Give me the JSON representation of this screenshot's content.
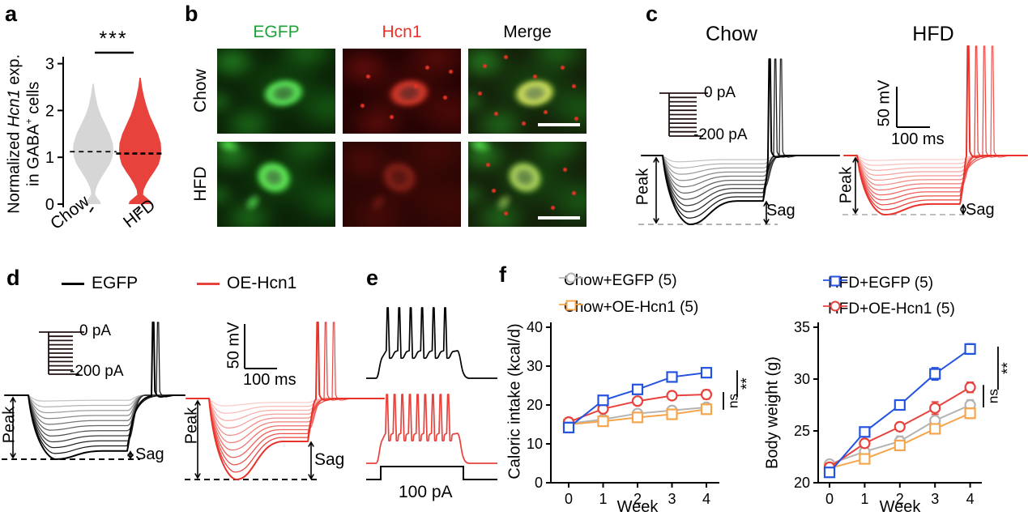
{
  "colors": {
    "red": "#e8423c",
    "red_dark": "#e8322a",
    "pink": "#fbdbd8",
    "gray_light": "#d8d8d8",
    "black": "#000000",
    "gray_violin": "#d6d6d6",
    "blue": "#2453e0",
    "orange": "#f5a54b",
    "gray_series": "#b3b3b3",
    "green_label": "#1ca338"
  },
  "panels": {
    "a": {
      "label": "a",
      "ylabel_pre": "Normalized ",
      "ylabel_gene": "Hcn1",
      "ylabel_post": " exp.",
      "ylabel2_pre": "in GABA",
      "ylabel2_sup": "+",
      "ylabel2_post": " cells",
      "significance": "***"
    },
    "b": {
      "label": "b",
      "columns": [
        {
          "label": "EGFP",
          "color": "#1ca338"
        },
        {
          "label": "Hcn1",
          "color": "#e8322a"
        },
        {
          "label": "Merge",
          "color": "#000000"
        }
      ],
      "rows": [
        "Chow",
        "HFD"
      ]
    },
    "c": {
      "label": "c",
      "left": {
        "title": "Chow",
        "inset_top": "0 pA",
        "inset_bottom": "-200 pA",
        "peak": "Peak",
        "sag": "Sag",
        "n_traces": 11
      },
      "right": {
        "title": "HFD",
        "scale_v": "50 mV",
        "scale_h": "100 ms",
        "peak": "Peak",
        "sag": "Sag",
        "n_traces": 12
      }
    },
    "d": {
      "label": "d",
      "legend": [
        {
          "label": "EGFP",
          "color": "#000000"
        },
        {
          "label": "OE-Hcn1",
          "color": "#e8423c"
        }
      ],
      "left": {
        "inset_top": "0 pA",
        "inset_bottom": "-200 pA",
        "peak": "Peak",
        "sag": "Sag",
        "n_traces": 11
      },
      "right": {
        "scale_v": "50 mV",
        "scale_h": "100 ms",
        "peak": "Peak",
        "sag": "Sag",
        "n_traces": 11
      }
    },
    "e": {
      "label": "e",
      "pulse_label": "100 pA",
      "traces": [
        {
          "color": "#000000",
          "n_spikes": 6
        },
        {
          "color": "#e8423c",
          "n_spikes": 9
        }
      ]
    },
    "f": {
      "label": "f",
      "legend_left": [
        {
          "label": "Chow+EGFP (5)",
          "color": "#b3b3b3",
          "marker": "circle"
        },
        {
          "label": "Chow+OE-Hcn1 (5)",
          "color": "#f5a54b",
          "marker": "square"
        }
      ],
      "legend_right": [
        {
          "label": "HFD+EGFP (5)",
          "color": "#2453e0",
          "marker": "square"
        },
        {
          "label": "HFD+OE-Hcn1 (5)",
          "color": "#e8423c",
          "marker": "circle"
        }
      ]
    }
  },
  "chart_data": [
    {
      "id": "violin_hcn1",
      "type": "violin",
      "ylabel": "Normalized Hcn1 exp. in GABA+ cells",
      "ylim": [
        0,
        3.4
      ],
      "yticks": [
        0,
        1,
        2,
        3
      ],
      "categories": [
        "Chow",
        "HFD"
      ],
      "significance": "***",
      "series": [
        {
          "name": "Chow",
          "color": "#d6d6d6",
          "median": 1.12,
          "max": 2.57,
          "profile": [
            [
              2.57,
              0.03
            ],
            [
              2.35,
              0.1
            ],
            [
              2.1,
              0.22
            ],
            [
              1.9,
              0.38
            ],
            [
              1.7,
              0.6
            ],
            [
              1.5,
              0.82
            ],
            [
              1.3,
              0.97
            ],
            [
              1.15,
              1.0
            ],
            [
              1.0,
              0.95
            ],
            [
              0.85,
              0.82
            ],
            [
              0.7,
              0.6
            ],
            [
              0.55,
              0.38
            ],
            [
              0.42,
              0.22
            ],
            [
              0.3,
              0.12
            ],
            [
              0.2,
              0.1
            ],
            [
              0.12,
              0.22
            ],
            [
              0.06,
              0.34
            ],
            [
              0.0,
              0.38
            ]
          ]
        },
        {
          "name": "HFD",
          "color": "#e8423c",
          "median": 1.08,
          "max": 2.7,
          "profile": [
            [
              2.7,
              0.03
            ],
            [
              2.5,
              0.09
            ],
            [
              2.3,
              0.18
            ],
            [
              2.1,
              0.3
            ],
            [
              1.9,
              0.45
            ],
            [
              1.7,
              0.65
            ],
            [
              1.5,
              0.85
            ],
            [
              1.3,
              0.98
            ],
            [
              1.15,
              1.0
            ],
            [
              1.0,
              0.97
            ],
            [
              0.85,
              0.88
            ],
            [
              0.7,
              0.68
            ],
            [
              0.55,
              0.45
            ],
            [
              0.42,
              0.28
            ],
            [
              0.3,
              0.16
            ],
            [
              0.2,
              0.14
            ],
            [
              0.12,
              0.35
            ],
            [
              0.06,
              0.5
            ],
            [
              0.0,
              0.55
            ]
          ]
        }
      ]
    },
    {
      "id": "caloric_intake",
      "type": "line",
      "ylabel": "Caloric intake (kcal/d)",
      "xlabel": "Week",
      "x": [
        0,
        1,
        2,
        3,
        4
      ],
      "ylim": [
        0,
        40
      ],
      "yticks": [
        0,
        10,
        20,
        30,
        40
      ],
      "series": [
        {
          "name": "Chow+EGFP (5)",
          "color": "#b3b3b3",
          "marker": "circle",
          "values": [
            15.2,
            16.3,
            17.8,
            18.6,
            19.4
          ],
          "err": [
            0.6,
            0.5,
            0.9,
            0.6,
            0.7
          ]
        },
        {
          "name": "Chow+OE-Hcn1 (5)",
          "color": "#f5a54b",
          "marker": "square",
          "values": [
            15.0,
            15.8,
            16.8,
            17.6,
            18.9
          ],
          "err": [
            0.5,
            0.5,
            0.8,
            0.7,
            0.8
          ]
        },
        {
          "name": "HFD+OE-Hcn1 (5)",
          "color": "#e8423c",
          "marker": "circle",
          "values": [
            15.6,
            19.0,
            21.0,
            22.4,
            22.7
          ],
          "err": [
            1.1,
            0.8,
            0.7,
            0.6,
            1.2
          ]
        },
        {
          "name": "HFD+EGFP (5)",
          "color": "#2453e0",
          "marker": "square",
          "values": [
            14.2,
            21.2,
            24.0,
            27.2,
            28.3
          ],
          "err": [
            1.3,
            0.9,
            0.7,
            1.2,
            0.9
          ]
        }
      ],
      "significance": [
        {
          "label": "ns",
          "from": 19.4,
          "to": 22.7
        },
        {
          "label": "**",
          "from": 22.7,
          "to": 28.3
        }
      ]
    },
    {
      "id": "body_weight",
      "type": "line",
      "ylabel": "Body weight (g)",
      "xlabel": "Week",
      "x": [
        0,
        1,
        2,
        3,
        4
      ],
      "ylim": [
        20,
        35
      ],
      "yticks": [
        20,
        25,
        30,
        35
      ],
      "series": [
        {
          "name": "Chow+EGFP (5)",
          "color": "#b3b3b3",
          "marker": "circle",
          "values": [
            21.8,
            23.0,
            24.0,
            26.0,
            27.5
          ],
          "err": [
            0.4,
            0.4,
            0.5,
            0.4,
            0.5
          ]
        },
        {
          "name": "Chow+OE-Hcn1 (5)",
          "color": "#f5a54b",
          "marker": "square",
          "values": [
            21.4,
            22.3,
            23.6,
            25.2,
            26.7
          ],
          "err": [
            0.3,
            0.4,
            0.4,
            0.4,
            0.5
          ]
        },
        {
          "name": "HFD+OE-Hcn1 (5)",
          "color": "#e8423c",
          "marker": "circle",
          "values": [
            21.5,
            23.8,
            25.4,
            27.2,
            29.2
          ],
          "err": [
            0.3,
            0.4,
            0.4,
            0.6,
            0.5
          ]
        },
        {
          "name": "HFD+EGFP (5)",
          "color": "#2453e0",
          "marker": "square",
          "values": [
            21.0,
            24.9,
            27.5,
            30.5,
            32.9
          ],
          "err": [
            0.4,
            0.3,
            0.4,
            0.6,
            0.5
          ]
        }
      ],
      "significance": [
        {
          "label": "ns",
          "from": 27.5,
          "to": 29.2
        },
        {
          "label": "**",
          "from": 29.2,
          "to": 32.9
        }
      ]
    }
  ]
}
